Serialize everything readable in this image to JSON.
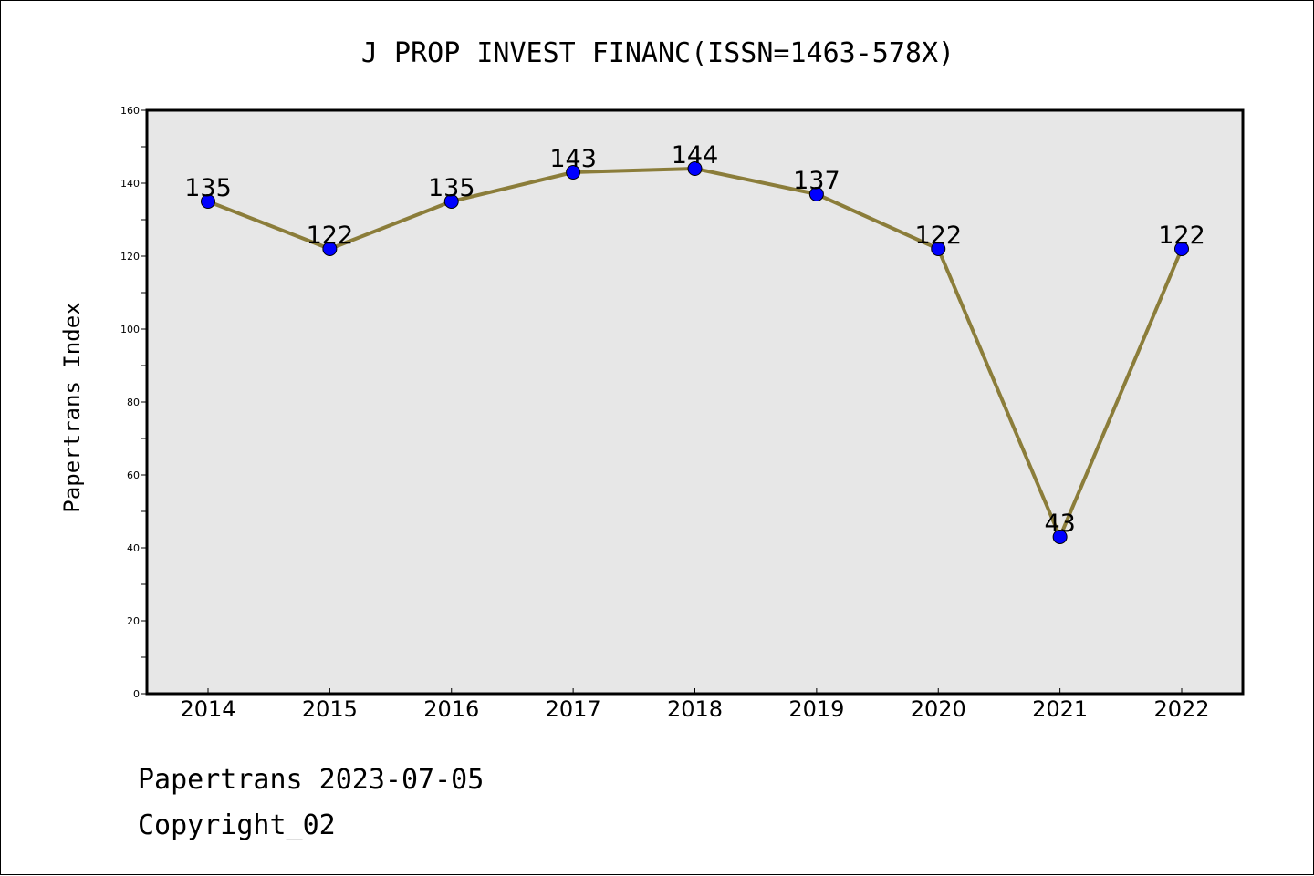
{
  "chart_data": {
    "type": "line",
    "title": "J PROP INVEST FINANC(ISSN=1463-578X)",
    "xlabel": "",
    "ylabel": "Papertrans Index",
    "categories": [
      "2014",
      "2015",
      "2016",
      "2017",
      "2018",
      "2019",
      "2020",
      "2021",
      "2022"
    ],
    "values": [
      135,
      122,
      135,
      143,
      144,
      137,
      122,
      43,
      122
    ],
    "data_labels": [
      "135",
      "122",
      "135",
      "143",
      "144",
      "137",
      "122",
      "43",
      "122"
    ],
    "ylim": [
      0,
      160
    ],
    "yticks": [
      "0",
      "20",
      "40",
      "60",
      "80",
      "100",
      "120",
      "140",
      "160"
    ],
    "grid": false,
    "line_color": "#8b7d3a",
    "marker_color": "#0000ff",
    "plot_background": "#e7e7e7"
  },
  "footer": {
    "line1": "Papertrans 2023-07-05",
    "line2": "Copyright_02"
  }
}
